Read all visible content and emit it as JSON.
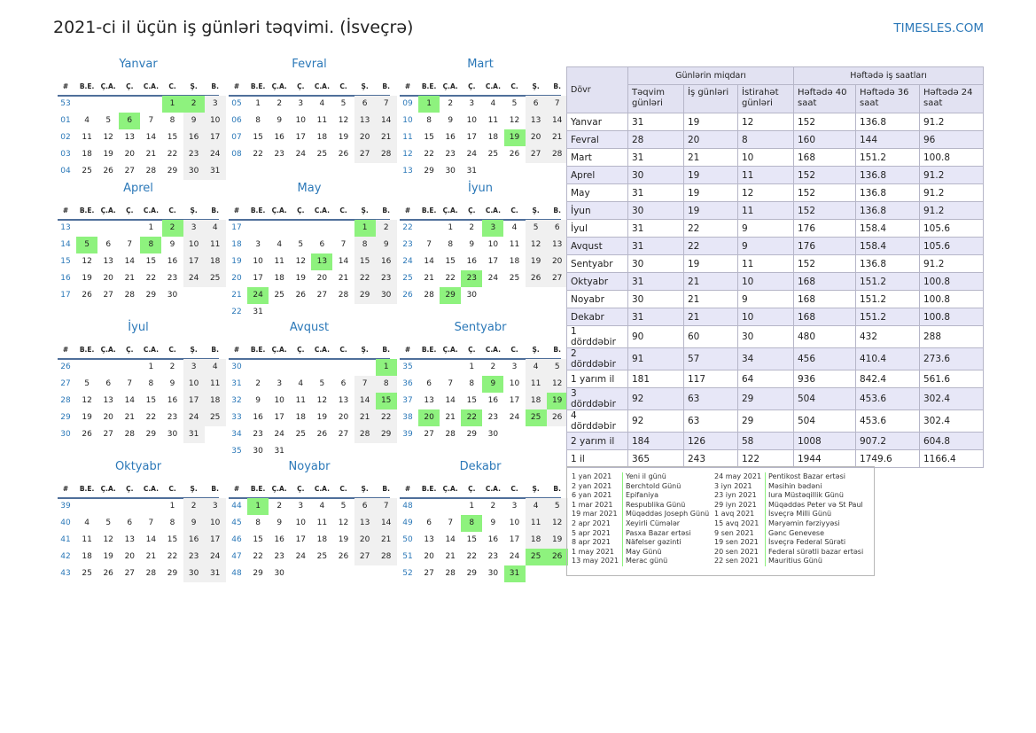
{
  "title": "2021-ci il üçün iş günləri təqvimi. (İsveçrə)",
  "site": "TIMESLES.COM",
  "weekday_header": [
    "#",
    "B.E.",
    "Ç.A.",
    "Ç.",
    "C.A.",
    "C.",
    "Ş.",
    "B."
  ],
  "months": [
    {
      "name": "Yanvar",
      "rows": [
        [
          "53",
          "",
          "",
          "",
          "",
          "1",
          "2",
          "3"
        ],
        [
          "01",
          "4",
          "5",
          "6",
          "7",
          "8",
          "9",
          "10"
        ],
        [
          "02",
          "11",
          "12",
          "13",
          "14",
          "15",
          "16",
          "17"
        ],
        [
          "03",
          "18",
          "19",
          "20",
          "21",
          "22",
          "23",
          "24"
        ],
        [
          "04",
          "25",
          "26",
          "27",
          "28",
          "29",
          "30",
          "31"
        ]
      ],
      "holidays": [
        "1",
        "2",
        "6"
      ]
    },
    {
      "name": "Fevral",
      "rows": [
        [
          "05",
          "1",
          "2",
          "3",
          "4",
          "5",
          "6",
          "7"
        ],
        [
          "06",
          "8",
          "9",
          "10",
          "11",
          "12",
          "13",
          "14"
        ],
        [
          "07",
          "15",
          "16",
          "17",
          "18",
          "19",
          "20",
          "21"
        ],
        [
          "08",
          "22",
          "23",
          "24",
          "25",
          "26",
          "27",
          "28"
        ]
      ],
      "holidays": []
    },
    {
      "name": "Mart",
      "rows": [
        [
          "09",
          "1",
          "2",
          "3",
          "4",
          "5",
          "6",
          "7"
        ],
        [
          "10",
          "8",
          "9",
          "10",
          "11",
          "12",
          "13",
          "14"
        ],
        [
          "11",
          "15",
          "16",
          "17",
          "18",
          "19",
          "20",
          "21"
        ],
        [
          "12",
          "22",
          "23",
          "24",
          "25",
          "26",
          "27",
          "28"
        ],
        [
          "13",
          "29",
          "30",
          "31",
          "",
          "",
          "",
          ""
        ]
      ],
      "holidays": [
        "1",
        "19"
      ]
    },
    {
      "name": "Aprel",
      "rows": [
        [
          "13",
          "",
          "",
          "",
          "1",
          "2",
          "3",
          "4"
        ],
        [
          "14",
          "5",
          "6",
          "7",
          "8",
          "9",
          "10",
          "11"
        ],
        [
          "15",
          "12",
          "13",
          "14",
          "15",
          "16",
          "17",
          "18"
        ],
        [
          "16",
          "19",
          "20",
          "21",
          "22",
          "23",
          "24",
          "25"
        ],
        [
          "17",
          "26",
          "27",
          "28",
          "29",
          "30",
          "",
          ""
        ]
      ],
      "holidays": [
        "2",
        "5",
        "8"
      ]
    },
    {
      "name": "May",
      "rows": [
        [
          "17",
          "",
          "",
          "",
          "",
          "",
          "1",
          "2"
        ],
        [
          "18",
          "3",
          "4",
          "5",
          "6",
          "7",
          "8",
          "9"
        ],
        [
          "19",
          "10",
          "11",
          "12",
          "13",
          "14",
          "15",
          "16"
        ],
        [
          "20",
          "17",
          "18",
          "19",
          "20",
          "21",
          "22",
          "23"
        ],
        [
          "21",
          "24",
          "25",
          "26",
          "27",
          "28",
          "29",
          "30"
        ],
        [
          "22",
          "31",
          "",
          "",
          "",
          "",
          "",
          ""
        ]
      ],
      "holidays": [
        "1",
        "13",
        "24"
      ]
    },
    {
      "name": "İyun",
      "rows": [
        [
          "22",
          "",
          "1",
          "2",
          "3",
          "4",
          "5",
          "6"
        ],
        [
          "23",
          "7",
          "8",
          "9",
          "10",
          "11",
          "12",
          "13"
        ],
        [
          "24",
          "14",
          "15",
          "16",
          "17",
          "18",
          "19",
          "20"
        ],
        [
          "25",
          "21",
          "22",
          "23",
          "24",
          "25",
          "26",
          "27"
        ],
        [
          "26",
          "28",
          "29",
          "30",
          "",
          "",
          "",
          ""
        ]
      ],
      "holidays": [
        "3",
        "23",
        "29"
      ]
    },
    {
      "name": "İyul",
      "rows": [
        [
          "26",
          "",
          "",
          "",
          "1",
          "2",
          "3",
          "4"
        ],
        [
          "27",
          "5",
          "6",
          "7",
          "8",
          "9",
          "10",
          "11"
        ],
        [
          "28",
          "12",
          "13",
          "14",
          "15",
          "16",
          "17",
          "18"
        ],
        [
          "29",
          "19",
          "20",
          "21",
          "22",
          "23",
          "24",
          "25"
        ],
        [
          "30",
          "26",
          "27",
          "28",
          "29",
          "30",
          "31",
          ""
        ]
      ],
      "holidays": []
    },
    {
      "name": "Avqust",
      "rows": [
        [
          "30",
          "",
          "",
          "",
          "",
          "",
          "",
          "1"
        ],
        [
          "31",
          "2",
          "3",
          "4",
          "5",
          "6",
          "7",
          "8"
        ],
        [
          "32",
          "9",
          "10",
          "11",
          "12",
          "13",
          "14",
          "15"
        ],
        [
          "33",
          "16",
          "17",
          "18",
          "19",
          "20",
          "21",
          "22"
        ],
        [
          "34",
          "23",
          "24",
          "25",
          "26",
          "27",
          "28",
          "29"
        ],
        [
          "35",
          "30",
          "31",
          "",
          "",
          "",
          "",
          ""
        ]
      ],
      "holidays": [
        "1",
        "15"
      ]
    },
    {
      "name": "Sentyabr",
      "rows": [
        [
          "35",
          "",
          "",
          "1",
          "2",
          "3",
          "4",
          "5"
        ],
        [
          "36",
          "6",
          "7",
          "8",
          "9",
          "10",
          "11",
          "12"
        ],
        [
          "37",
          "13",
          "14",
          "15",
          "16",
          "17",
          "18",
          "19"
        ],
        [
          "38",
          "20",
          "21",
          "22",
          "23",
          "24",
          "25",
          "26"
        ],
        [
          "39",
          "27",
          "28",
          "29",
          "30",
          "",
          "",
          ""
        ]
      ],
      "holidays": [
        "9",
        "19",
        "20",
        "22",
        "25"
      ]
    },
    {
      "name": "Oktyabr",
      "rows": [
        [
          "39",
          "",
          "",
          "",
          "",
          "1",
          "2",
          "3"
        ],
        [
          "40",
          "4",
          "5",
          "6",
          "7",
          "8",
          "9",
          "10"
        ],
        [
          "41",
          "11",
          "12",
          "13",
          "14",
          "15",
          "16",
          "17"
        ],
        [
          "42",
          "18",
          "19",
          "20",
          "21",
          "22",
          "23",
          "24"
        ],
        [
          "43",
          "25",
          "26",
          "27",
          "28",
          "29",
          "30",
          "31"
        ]
      ],
      "holidays": []
    },
    {
      "name": "Noyabr",
      "rows": [
        [
          "44",
          "1",
          "2",
          "3",
          "4",
          "5",
          "6",
          "7"
        ],
        [
          "45",
          "8",
          "9",
          "10",
          "11",
          "12",
          "13",
          "14"
        ],
        [
          "46",
          "15",
          "16",
          "17",
          "18",
          "19",
          "20",
          "21"
        ],
        [
          "47",
          "22",
          "23",
          "24",
          "25",
          "26",
          "27",
          "28"
        ],
        [
          "48",
          "29",
          "30",
          "",
          "",
          "",
          "",
          ""
        ]
      ],
      "holidays": [
        "1"
      ]
    },
    {
      "name": "Dekabr",
      "rows": [
        [
          "48",
          "",
          "",
          "1",
          "2",
          "3",
          "4",
          "5"
        ],
        [
          "49",
          "6",
          "7",
          "8",
          "9",
          "10",
          "11",
          "12"
        ],
        [
          "50",
          "13",
          "14",
          "15",
          "16",
          "17",
          "18",
          "19"
        ],
        [
          "51",
          "20",
          "21",
          "22",
          "23",
          "24",
          "25",
          "26"
        ],
        [
          "52",
          "27",
          "28",
          "29",
          "30",
          "31",
          "",
          ""
        ]
      ],
      "holidays": [
        "8",
        "25",
        "26",
        "31"
      ]
    }
  ],
  "table": {
    "period_header": "Dövr",
    "group1": "Günlərin miqdarı",
    "group2": "Həftədə iş saatları",
    "cols": [
      "Təqvim günləri",
      "İş günləri",
      "İstirahət günləri",
      "Həftədə 40 saat",
      "Həftədə 36 saat",
      "Həftədə 24 saat"
    ],
    "rows": [
      [
        "Yanvar",
        "31",
        "19",
        "12",
        "152",
        "136.8",
        "91.2"
      ],
      [
        "Fevral",
        "28",
        "20",
        "8",
        "160",
        "144",
        "96"
      ],
      [
        "Mart",
        "31",
        "21",
        "10",
        "168",
        "151.2",
        "100.8"
      ],
      [
        "Aprel",
        "30",
        "19",
        "11",
        "152",
        "136.8",
        "91.2"
      ],
      [
        "May",
        "31",
        "19",
        "12",
        "152",
        "136.8",
        "91.2"
      ],
      [
        "İyun",
        "30",
        "19",
        "11",
        "152",
        "136.8",
        "91.2"
      ],
      [
        "İyul",
        "31",
        "22",
        "9",
        "176",
        "158.4",
        "105.6"
      ],
      [
        "Avqust",
        "31",
        "22",
        "9",
        "176",
        "158.4",
        "105.6"
      ],
      [
        "Sentyabr",
        "30",
        "19",
        "11",
        "152",
        "136.8",
        "91.2"
      ],
      [
        "Oktyabr",
        "31",
        "21",
        "10",
        "168",
        "151.2",
        "100.8"
      ],
      [
        "Noyabr",
        "30",
        "21",
        "9",
        "168",
        "151.2",
        "100.8"
      ],
      [
        "Dekabr",
        "31",
        "21",
        "10",
        "168",
        "151.2",
        "100.8"
      ],
      [
        "1 dörddəbir",
        "90",
        "60",
        "30",
        "480",
        "432",
        "288"
      ],
      [
        "2 dörddəbir",
        "91",
        "57",
        "34",
        "456",
        "410.4",
        "273.6"
      ],
      [
        "1 yarım il",
        "181",
        "117",
        "64",
        "936",
        "842.4",
        "561.6"
      ],
      [
        "3 dörddəbir",
        "92",
        "63",
        "29",
        "504",
        "453.6",
        "302.4"
      ],
      [
        "4 dörddəbir",
        "92",
        "63",
        "29",
        "504",
        "453.6",
        "302.4"
      ],
      [
        "2 yarım il",
        "184",
        "126",
        "58",
        "1008",
        "907.2",
        "604.8"
      ],
      [
        "1 il",
        "365",
        "243",
        "122",
        "1944",
        "1749.6",
        "1166.4"
      ]
    ]
  },
  "holidays_list": [
    [
      {
        "date": "1 yan 2021",
        "name": "Yeni il günü"
      },
      {
        "date": "2 yan 2021",
        "name": "Berchtold Günü"
      },
      {
        "date": "6 yan 2021",
        "name": "Epifaniya"
      },
      {
        "date": "1 mar 2021",
        "name": "Respublika Günü"
      },
      {
        "date": "19 mar 2021",
        "name": "Müqəddəs Joseph Günü"
      },
      {
        "date": "2 apr 2021",
        "name": "Xeyirli Cümələr"
      },
      {
        "date": "5 apr 2021",
        "name": "Pasxa Bazar ertəsi"
      },
      {
        "date": "8 apr 2021",
        "name": "Näfelser gəzinti"
      },
      {
        "date": "1 may 2021",
        "name": "May Günü"
      },
      {
        "date": "13 may 2021",
        "name": "Merac günü"
      }
    ],
    [
      {
        "date": "24 may 2021",
        "name": "Pentikost Bazar ertəsi"
      },
      {
        "date": "3 iyn 2021",
        "name": "Məsihin bədəni"
      },
      {
        "date": "23 iyn 2021",
        "name": "Iura Müstəqillik Günü"
      },
      {
        "date": "29 iyn 2021",
        "name": "Müqəddəs Peter və St Paul"
      },
      {
        "date": "1 avq 2021",
        "name": "İsveçrə Milli Günü"
      },
      {
        "date": "15 avq 2021",
        "name": "Məryəmin fərziyyəsi"
      },
      {
        "date": "9 sen 2021",
        "name": "Gənc Genevese"
      },
      {
        "date": "19 sen 2021",
        "name": "İsveçrə Federal Sürəti"
      },
      {
        "date": "20 sen 2021",
        "name": "Federal sürətli bazar ertəsi"
      },
      {
        "date": "22 sen 2021",
        "name": "Mauritius Günü"
      }
    ]
  ]
}
